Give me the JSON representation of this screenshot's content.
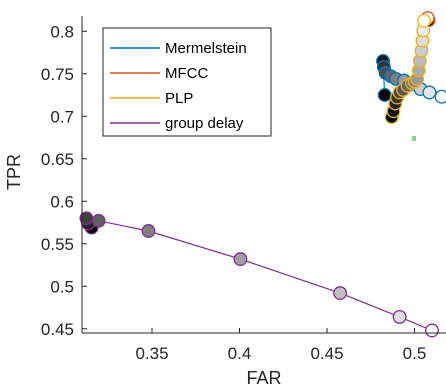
{
  "chart_data": {
    "type": "line",
    "xlabel": "FAR",
    "ylabel": "TPR",
    "xlim": [
      0.31,
      0.518
    ],
    "ylim": [
      0.445,
      0.818
    ],
    "xticks": [
      "0.35",
      "0.4",
      "0.45",
      "0.5"
    ],
    "yticks": [
      "0.45",
      "0.5",
      "0.55",
      "0.6",
      "0.65",
      "0.7",
      "0.75",
      "0.8"
    ],
    "grid": false,
    "legend_position": "top-left",
    "series": [
      {
        "name": "Mermelstein",
        "color": "#0072BD",
        "x": [
          0.5155,
          0.5085,
          0.5035,
          0.4975,
          0.494,
          0.4895,
          0.4865,
          0.4835,
          0.4825,
          0.482,
          0.483
        ],
        "y": [
          0.723,
          0.728,
          0.732,
          0.737,
          0.742,
          0.744,
          0.747,
          0.751,
          0.758,
          0.765,
          0.725
        ]
      },
      {
        "name": "MFCC",
        "color": "#D95319",
        "x": [
          0.5075,
          0.508
        ],
        "y": [
          0.8155,
          0.813
        ]
      },
      {
        "name": "PLP",
        "color": "#EDB120",
        "x": [
          0.5055,
          0.505,
          0.5045,
          0.504,
          0.503,
          0.5025,
          0.5015,
          0.5,
          0.4985,
          0.496,
          0.4935,
          0.4915,
          0.49,
          0.489,
          0.488,
          0.487
        ],
        "y": [
          0.8125,
          0.801,
          0.789,
          0.777,
          0.765,
          0.754,
          0.744,
          0.741,
          0.739,
          0.736,
          0.731,
          0.728,
          0.722,
          0.715,
          0.706,
          0.699
        ]
      },
      {
        "name": "group delay",
        "color": "#7E2F8E",
        "x": [
          0.51,
          0.4915,
          0.4575,
          0.4005,
          0.348,
          0.3195,
          0.3125,
          0.3135,
          0.3155
        ],
        "y": [
          0.448,
          0.464,
          0.492,
          0.532,
          0.565,
          0.577,
          0.58,
          0.574,
          0.569
        ]
      }
    ]
  }
}
